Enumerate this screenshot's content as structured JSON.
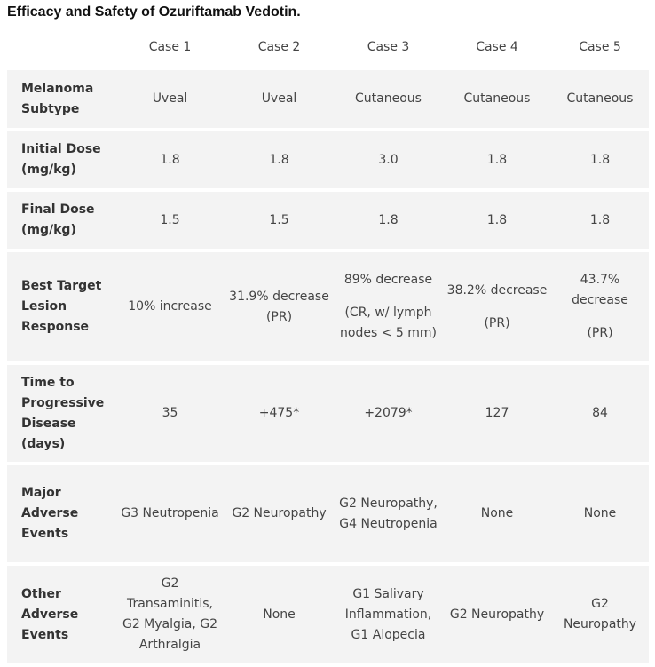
{
  "title": "Efficacy and Safety of Ozuriftamab Vedotin.",
  "table": {
    "columns": [
      "Case 1",
      "Case 2",
      "Case 3",
      "Case 4",
      "Case 5"
    ],
    "rows": [
      {
        "label": "Melanoma Subtype",
        "cells": [
          [
            "Uveal"
          ],
          [
            "Uveal"
          ],
          [
            "Cutaneous"
          ],
          [
            "Cutaneous"
          ],
          [
            "Cutaneous"
          ]
        ]
      },
      {
        "label": "Initial Dose (mg/kg)",
        "cells": [
          [
            "1.8"
          ],
          [
            "1.8"
          ],
          [
            "3.0"
          ],
          [
            "1.8"
          ],
          [
            "1.8"
          ]
        ]
      },
      {
        "label": "Final Dose (mg/kg)",
        "cells": [
          [
            "1.5"
          ],
          [
            "1.5"
          ],
          [
            "1.8"
          ],
          [
            "1.8"
          ],
          [
            "1.8"
          ]
        ]
      },
      {
        "label": "Best Target Lesion Response",
        "cells": [
          [
            "10% increase"
          ],
          [
            "31.9% decrease (PR)"
          ],
          [
            "89% decrease",
            "(CR, w/ lymph nodes < 5 mm)"
          ],
          [
            "38.2% decrease",
            "(PR)"
          ],
          [
            "43.7% decrease",
            "(PR)"
          ]
        ]
      },
      {
        "label": "Time to Progressive Disease (days)",
        "cells": [
          [
            "35"
          ],
          [
            "+475*"
          ],
          [
            "+2079*"
          ],
          [
            "127"
          ],
          [
            "84"
          ]
        ]
      },
      {
        "label": "Major Adverse Events",
        "cells": [
          [
            "G3 Neutropenia"
          ],
          [
            "G2 Neuropathy"
          ],
          [
            "G2 Neuropathy, G4 Neutropenia"
          ],
          [
            "None"
          ],
          [
            "None"
          ]
        ]
      },
      {
        "label": "Other Adverse Events",
        "cells": [
          [
            "G2 Transaminitis, G2 Myalgia, G2 Arthralgia"
          ],
          [
            "None"
          ],
          [
            "G1 Salivary Inflammation, G1 Alopecia"
          ],
          [
            "G2 Neuropathy"
          ],
          [
            "G2 Neuropathy"
          ]
        ]
      }
    ]
  }
}
